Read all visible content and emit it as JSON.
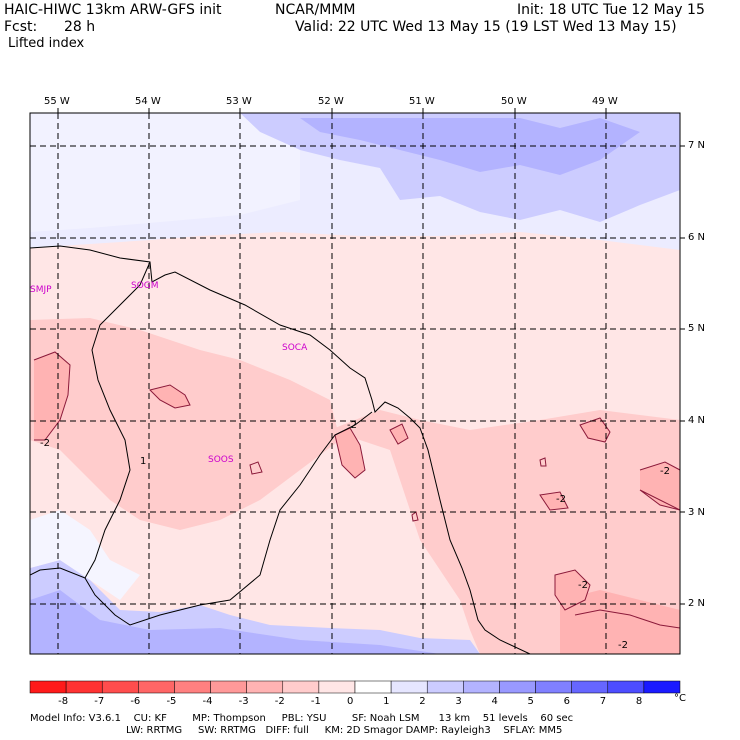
{
  "header": {
    "model_title": "HAIC-HIWC 13km ARW-GFS init",
    "org": "NCAR/MMM",
    "init": "Init: 18 UTC Tue 12 May 15",
    "fcst_label": "Fcst:",
    "fcst_value": "28 h",
    "valid": "Valid: 22 UTC Wed 13 May 15 (19 LST Wed 13 May 15)",
    "field": "Lifted index"
  },
  "map": {
    "lon_labels": [
      "55 W",
      "54 W",
      "53 W",
      "52 W",
      "51 W",
      "50 W",
      "49 W"
    ],
    "lat_labels": [
      "7 N",
      "6 N",
      "5 N",
      "4 N",
      "3 N",
      "2 N"
    ],
    "stations": [
      "SMJP",
      "SOGM",
      "SOCA",
      "SOOS"
    ],
    "contour_labels": [
      "-2",
      "1",
      "-2",
      "-2",
      "-2",
      "-2",
      "-2"
    ]
  },
  "colorbar": {
    "labels": [
      "-8",
      "-7",
      "-6",
      "-5",
      "-4",
      "-3",
      "-2",
      "-1",
      "0",
      "1",
      "2",
      "3",
      "4",
      "5",
      "6",
      "7",
      "8"
    ],
    "unit": "°C",
    "colors": [
      "#ff1a1a",
      "#ff3333",
      "#ff4d4d",
      "#ff6666",
      "#ff8080",
      "#ff9999",
      "#ffb3b3",
      "#ffcccc",
      "#ffe6e6",
      "#ffffff",
      "#e6e6ff",
      "#ccccff",
      "#b3b3ff",
      "#9999ff",
      "#8080ff",
      "#6666ff",
      "#4d4dff",
      "#1a1aff"
    ]
  },
  "footer": {
    "line1": "Model Info: V3.6.1    CU: KF        MP: Thompson     PBL: YSU        SF: Noah LSM      13 km    51 levels    60 sec",
    "line2": "LW: RRTMG     SW: RRTMG   DIFF: full     KM: 2D Smagor DAMP: Rayleigh3    SFLAY: MM5"
  }
}
